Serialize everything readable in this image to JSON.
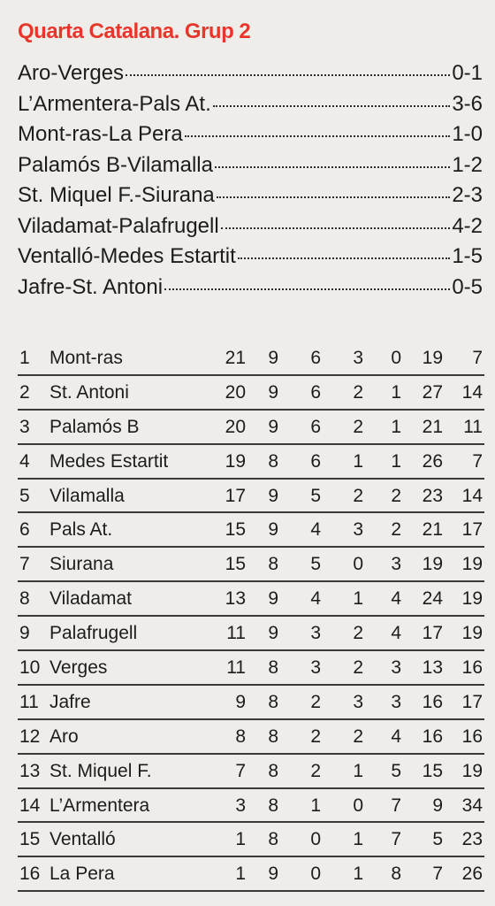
{
  "section_title": "Quarta Catalana. Grup 2",
  "results": [
    {
      "match": "Aro-Verges",
      "score": "0-1"
    },
    {
      "match": "L’Armentera-Pals At.",
      "score": "3-6"
    },
    {
      "match": "Mont-ras-La Pera",
      "score": "1-0"
    },
    {
      "match": "Palamós B-Vilamalla",
      "score": "1-2"
    },
    {
      "match": "St. Miquel F.-Siurana",
      "score": "2-3"
    },
    {
      "match": "Viladamat-Palafrugell",
      "score": "4-2"
    },
    {
      "match": "Ventalló-Medes Estartit",
      "score": "1-5"
    },
    {
      "match": "Jafre-St. Antoni",
      "score": "0-5"
    }
  ],
  "standings": [
    {
      "pos": "1",
      "team": "Mont-ras",
      "pts": "21",
      "pj": "9",
      "pg": "6",
      "pe": "3",
      "pp": "0",
      "gf": "19",
      "gc": "7"
    },
    {
      "pos": "2",
      "team": "St. Antoni",
      "pts": "20",
      "pj": "9",
      "pg": "6",
      "pe": "2",
      "pp": "1",
      "gf": "27",
      "gc": "14"
    },
    {
      "pos": "3",
      "team": "Palamós B",
      "pts": "20",
      "pj": "9",
      "pg": "6",
      "pe": "2",
      "pp": "1",
      "gf": "21",
      "gc": "11"
    },
    {
      "pos": "4",
      "team": "Medes Estartit",
      "pts": "19",
      "pj": "8",
      "pg": "6",
      "pe": "1",
      "pp": "1",
      "gf": "26",
      "gc": "7"
    },
    {
      "pos": "5",
      "team": "Vilamalla",
      "pts": "17",
      "pj": "9",
      "pg": "5",
      "pe": "2",
      "pp": "2",
      "gf": "23",
      "gc": "14"
    },
    {
      "pos": "6",
      "team": "Pals At.",
      "pts": "15",
      "pj": "9",
      "pg": "4",
      "pe": "3",
      "pp": "2",
      "gf": "21",
      "gc": "17"
    },
    {
      "pos": "7",
      "team": "Siurana",
      "pts": "15",
      "pj": "8",
      "pg": "5",
      "pe": "0",
      "pp": "3",
      "gf": "19",
      "gc": "19"
    },
    {
      "pos": "8",
      "team": "Viladamat",
      "pts": "13",
      "pj": "9",
      "pg": "4",
      "pe": "1",
      "pp": "4",
      "gf": "24",
      "gc": "19"
    },
    {
      "pos": "9",
      "team": "Palafrugell",
      "pts": "11",
      "pj": "9",
      "pg": "3",
      "pe": "2",
      "pp": "4",
      "gf": "17",
      "gc": "19"
    },
    {
      "pos": "10",
      "team": "Verges",
      "pts": "11",
      "pj": "8",
      "pg": "3",
      "pe": "2",
      "pp": "3",
      "gf": "13",
      "gc": "16"
    },
    {
      "pos": "11",
      "team": "Jafre",
      "pts": "9",
      "pj": "8",
      "pg": "2",
      "pe": "3",
      "pp": "3",
      "gf": "16",
      "gc": "17"
    },
    {
      "pos": "12",
      "team": "Aro",
      "pts": "8",
      "pj": "8",
      "pg": "2",
      "pe": "2",
      "pp": "4",
      "gf": "16",
      "gc": "16"
    },
    {
      "pos": "13",
      "team": "St. Miquel F.",
      "pts": "7",
      "pj": "8",
      "pg": "2",
      "pe": "1",
      "pp": "5",
      "gf": "15",
      "gc": "19"
    },
    {
      "pos": "14",
      "team": "L’Armentera",
      "pts": "3",
      "pj": "8",
      "pg": "1",
      "pe": "0",
      "pp": "7",
      "gf": "9",
      "gc": "34"
    },
    {
      "pos": "15",
      "team": "Ventalló",
      "pts": "1",
      "pj": "8",
      "pg": "0",
      "pe": "1",
      "pp": "7",
      "gf": "5",
      "gc": "23"
    },
    {
      "pos": "16",
      "team": "La Pera",
      "pts": "1",
      "pj": "9",
      "pg": "0",
      "pe": "1",
      "pp": "8",
      "gf": "7",
      "gc": "26"
    }
  ],
  "colors": {
    "title": "#e8372a",
    "text": "#1c1c1c",
    "paper": "#efede9"
  }
}
